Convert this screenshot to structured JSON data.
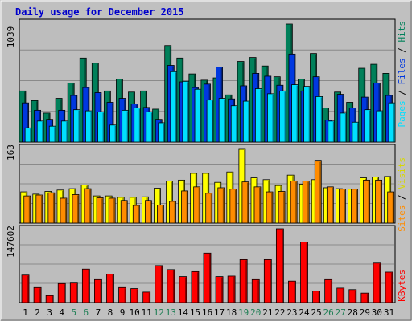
{
  "chart_data": {
    "type": "bar",
    "title": "Daily usage for December 2015",
    "categories": [
      "1",
      "2",
      "3",
      "4",
      "5",
      "6",
      "7",
      "8",
      "9",
      "10",
      "11",
      "12",
      "13",
      "14",
      "15",
      "16",
      "17",
      "18",
      "19",
      "20",
      "21",
      "22",
      "23",
      "24",
      "25",
      "26",
      "27",
      "28",
      "29",
      "30",
      "31"
    ],
    "weekend_days": [
      "5",
      "6",
      "12",
      "13",
      "19",
      "20",
      "26",
      "27"
    ],
    "legend_top": [
      "Pages",
      "Files",
      "Hits"
    ],
    "legend_mid": [
      "Sites",
      "Visits"
    ],
    "legend_bottom": "KBytes",
    "separator": "/",
    "max_labels": {
      "top": "1039",
      "mid": "163",
      "bottom": "147602"
    },
    "panels": [
      {
        "name": "top",
        "ymax": 1039,
        "series": [
          {
            "name": "Hits",
            "color": "#00805a",
            "values": [
              450,
              365,
              255,
              385,
              520,
              740,
              695,
              450,
              555,
              440,
              450,
              290,
              850,
              740,
              600,
              545,
              565,
              415,
              710,
              745,
              670,
              575,
              1039,
              555,
              780,
              300,
              440,
              350,
              650,
              685,
              605
            ]
          },
          {
            "name": "Files",
            "color": "#0038e0",
            "values": [
              345,
              280,
              200,
              280,
              410,
              480,
              435,
              350,
              385,
              335,
              305,
              200,
              675,
              530,
              480,
              510,
              660,
              380,
              495,
              605,
              580,
              500,
              775,
              450,
              575,
              195,
              420,
              300,
              395,
              520,
              410
            ]
          },
          {
            "name": "Pages",
            "color": "#00e0ff",
            "values": [
              125,
              185,
              140,
              185,
              285,
              275,
              265,
              150,
              280,
              300,
              265,
              170,
              620,
              535,
              465,
              370,
              385,
              320,
              360,
              470,
              425,
              450,
              505,
              490,
              400,
              185,
              255,
              175,
              285,
              275,
              345
            ]
          }
        ]
      },
      {
        "name": "mid",
        "ymax": 163,
        "series": [
          {
            "name": "Visits",
            "color": "#ffff00",
            "values": [
              69,
              64,
              70,
              73,
              76,
              84,
              60,
              60,
              57,
              57,
              58,
              77,
              93,
              95,
              110,
              110,
              90,
              113,
              163,
              100,
              96,
              83,
              106,
              86,
              96,
              78,
              76,
              75,
              100,
              102,
              103
            ]
          },
          {
            "name": "Sites",
            "color": "#ff8c00",
            "values": [
              60,
              62,
              67,
              55,
              63,
              76,
              56,
              55,
              50,
              39,
              50,
              40,
              48,
              71,
              80,
              66,
              78,
              75,
              91,
              80,
              69,
              70,
              93,
              93,
              137,
              80,
              75,
              75,
              95,
              95,
              69
            ]
          }
        ]
      },
      {
        "name": "bottom",
        "ymax": 147602,
        "series": [
          {
            "name": "KBytes",
            "color": "#ff0000",
            "values": [
              55000,
              30000,
              14000,
              38000,
              39000,
              67000,
              46000,
              57000,
              30000,
              28000,
              21000,
              74000,
              66000,
              52000,
              62000,
              99000,
              52000,
              53000,
              86000,
              46000,
              86000,
              147602,
              43000,
              121000,
              23000,
              46000,
              29000,
              26000,
              19000,
              79000,
              61000
            ]
          }
        ]
      }
    ]
  }
}
